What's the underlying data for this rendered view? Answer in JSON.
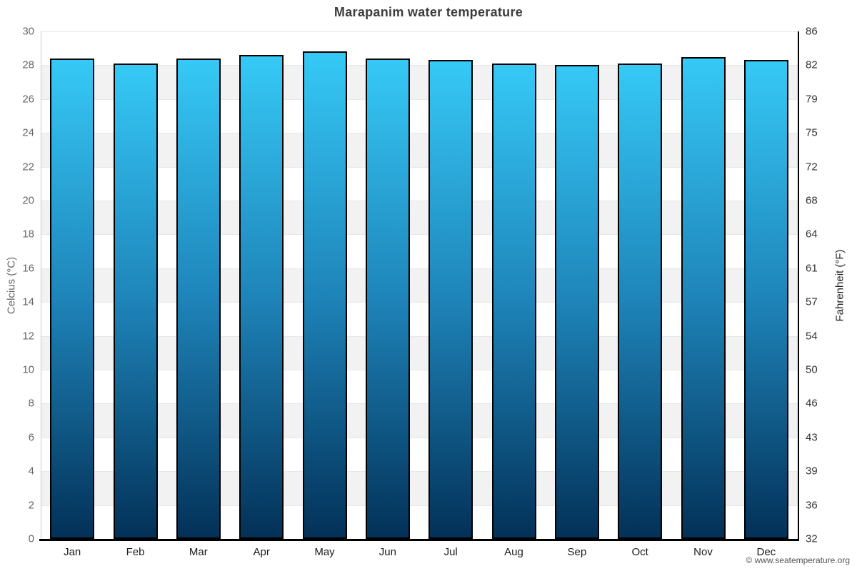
{
  "title": "Marapanim water temperature",
  "copyright": "© www.seatemperature.org",
  "chart_data": {
    "type": "bar",
    "title": "Marapanim water temperature",
    "categories": [
      "Jan",
      "Feb",
      "Mar",
      "Apr",
      "May",
      "Jun",
      "Jul",
      "Aug",
      "Sep",
      "Oct",
      "Nov",
      "Dec"
    ],
    "values": [
      28.4,
      28.1,
      28.4,
      28.6,
      28.8,
      28.4,
      28.3,
      28.1,
      28.0,
      28.1,
      28.5,
      28.3
    ],
    "xlabel": "",
    "ylabel_left": "Celcius (°C)",
    "ylabel_right": "Fahrenheit (°F)",
    "ylim": [
      0,
      30
    ],
    "yticks_celsius": [
      0,
      2,
      4,
      6,
      8,
      10,
      12,
      14,
      16,
      18,
      20,
      22,
      24,
      26,
      28,
      30
    ],
    "yticks_fahrenheit": [
      "32",
      "36",
      "39",
      "43",
      "46",
      "50",
      "54",
      "57",
      "61",
      "64",
      "68",
      "72",
      "75",
      "79",
      "82",
      "86"
    ],
    "legend": "none",
    "grid": "alternating horizontal bands every 2°C, white and light gray",
    "colors": {
      "bar_top": "#36c9f6",
      "bar_mid": "#1e84b9",
      "bar_bottom": "#033158",
      "bar_border": "#000000",
      "band_gray": "#f2f2f2",
      "band_white": "#ffffff",
      "gridline": "#e7e7e7",
      "axis_left_line": "#c8c8c8",
      "axis_right_line": "#000000",
      "axis_bottom_line": "#000000",
      "title_color": "#3c3c3c",
      "left_tick_color": "#666666",
      "right_tick_color": "#333333",
      "month_color": "#1a1a1a",
      "copyright_color": "#555555"
    }
  }
}
